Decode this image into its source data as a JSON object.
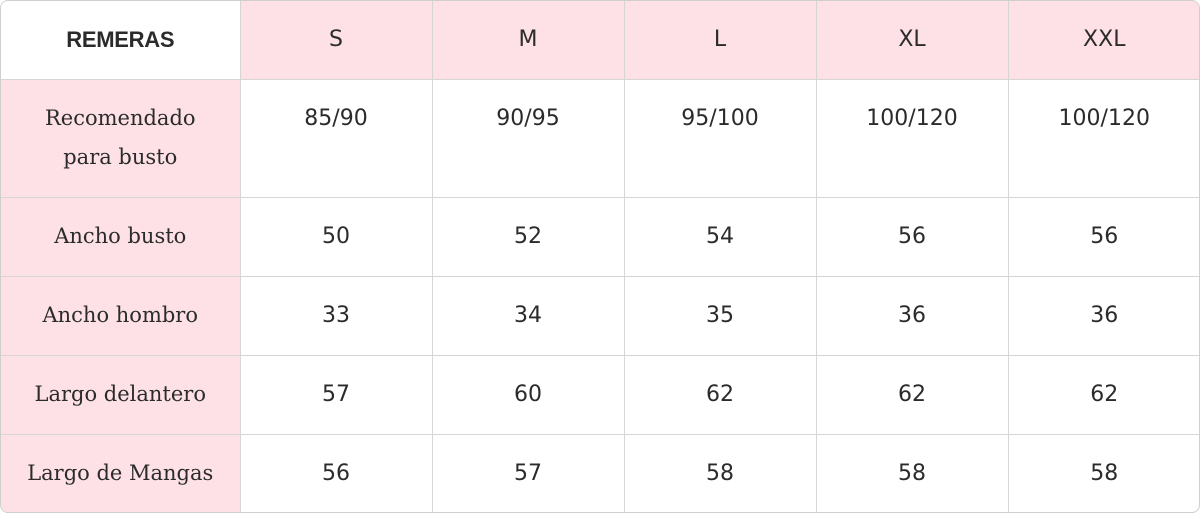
{
  "table": {
    "corner_label": "REMERAS",
    "sizes": [
      "S",
      "M",
      "L",
      "XL",
      "XXL"
    ],
    "rows": [
      {
        "label_lines": [
          "Recomendado",
          "para busto"
        ],
        "values": [
          "85/90",
          "90/95",
          "95/100",
          "100/120",
          "100/120"
        ]
      },
      {
        "label_lines": [
          "Ancho busto"
        ],
        "values": [
          "50",
          "52",
          "54",
          "56",
          "56"
        ]
      },
      {
        "label_lines": [
          "Ancho hombro"
        ],
        "values": [
          "33",
          "34",
          "35",
          "36",
          "36"
        ]
      },
      {
        "label_lines": [
          "Largo delantero"
        ],
        "values": [
          "57",
          "60",
          "62",
          "62",
          "62"
        ]
      },
      {
        "label_lines": [
          "Largo de Mangas"
        ],
        "values": [
          "56",
          "57",
          "58",
          "58",
          "58"
        ]
      }
    ]
  },
  "colors": {
    "header_pink": "#fde1e6",
    "border": "#d6d6d6",
    "text": "#2b2b2b"
  }
}
